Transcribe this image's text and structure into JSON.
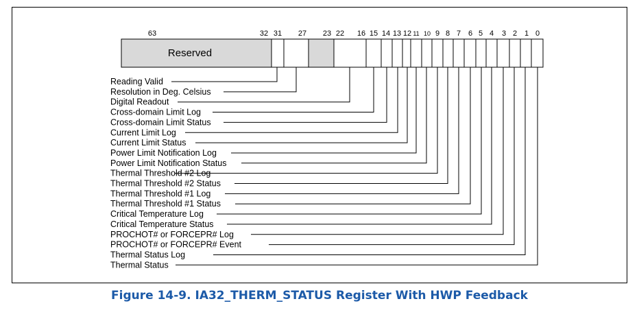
{
  "caption": "Figure 14-9.  IA32_THERM_STATUS Register With HWP Feedback",
  "reserved_label": "Reserved",
  "bit_numbers": [
    "63",
    "32",
    "31",
    "27",
    "23",
    "22",
    "16",
    "15",
    "14",
    "13",
    "12",
    "11",
    "10",
    "9",
    "8",
    "7",
    "6",
    "5",
    "4",
    "3",
    "2",
    "1",
    "0"
  ],
  "fields": [
    "Reading Valid",
    "Resolution in Deg. Celsius",
    "Digital Readout",
    "Cross-domain Limit Log",
    "Cross-domain Limit Status",
    "Current Limit Log",
    "Current Limit Status",
    "Power Limit Notification Log",
    "Power Limit Notification Status",
    "Thermal Threshold #2 Log",
    "Thermal Threshold #2 Status",
    "Thermal Threshold #1 Log",
    "Thermal Threshold #1 Status",
    "Critical Temperature Log",
    "Critical Temperature Status",
    "PROCHOT# or FORCEPR# Log",
    "PROCHOT# or FORCEPR# Event",
    "Thermal Status Log",
    "Thermal Status"
  ]
}
